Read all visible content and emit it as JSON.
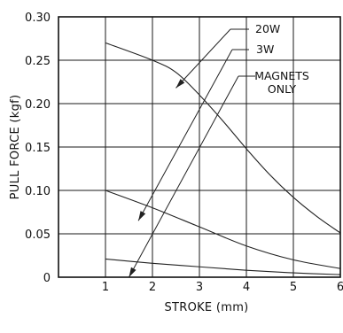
{
  "chart_data": {
    "type": "line",
    "title": "",
    "xlabel": "STROKE (mm)",
    "ylabel": "PULL FORCE (kgf)",
    "xlim": [
      0,
      6
    ],
    "ylim": [
      0,
      0.3
    ],
    "x_ticks": [
      1,
      2,
      3,
      4,
      5,
      6
    ],
    "x_tick_labels": [
      "1",
      "2",
      "3",
      "4",
      "5",
      "6"
    ],
    "y_ticks": [
      0,
      0.05,
      0.1,
      0.15,
      0.2,
      0.25,
      0.3
    ],
    "y_tick_labels": [
      "0",
      "0.05",
      "0.10",
      "0.15",
      "0.20",
      "0.25",
      "0.30"
    ],
    "grid": true,
    "series": [
      {
        "name": "20W",
        "points": [
          [
            1,
            0.27
          ],
          [
            2,
            0.25
          ],
          [
            2.5,
            0.236
          ],
          [
            3,
            0.21
          ],
          [
            3.5,
            0.18
          ],
          [
            4,
            0.148
          ],
          [
            4.5,
            0.118
          ],
          [
            5,
            0.092
          ],
          [
            5.5,
            0.07
          ],
          [
            6,
            0.051
          ]
        ]
      },
      {
        "name": "3W",
        "points": [
          [
            1,
            0.1
          ],
          [
            2,
            0.08
          ],
          [
            3,
            0.058
          ],
          [
            4,
            0.036
          ],
          [
            5,
            0.02
          ],
          [
            6,
            0.01
          ]
        ]
      },
      {
        "name": "MAGNETS ONLY",
        "points": [
          [
            1,
            0.021
          ],
          [
            2,
            0.016
          ],
          [
            3,
            0.012
          ],
          [
            4,
            0.008
          ],
          [
            5,
            0.005
          ],
          [
            6,
            0.003
          ]
        ]
      }
    ],
    "annotations": [
      {
        "series": "20W",
        "label_lines": [
          "20W"
        ],
        "arrow_to": [
          2.5,
          0.218
        ]
      },
      {
        "series": "3W",
        "label_lines": [
          "3W"
        ],
        "arrow_to": [
          1.7,
          0.065
        ]
      },
      {
        "series": "MAGNETS ONLY",
        "label_lines": [
          "MAGNETS",
          "ONLY"
        ],
        "arrow_to": [
          1.5,
          0.0
        ]
      }
    ]
  }
}
